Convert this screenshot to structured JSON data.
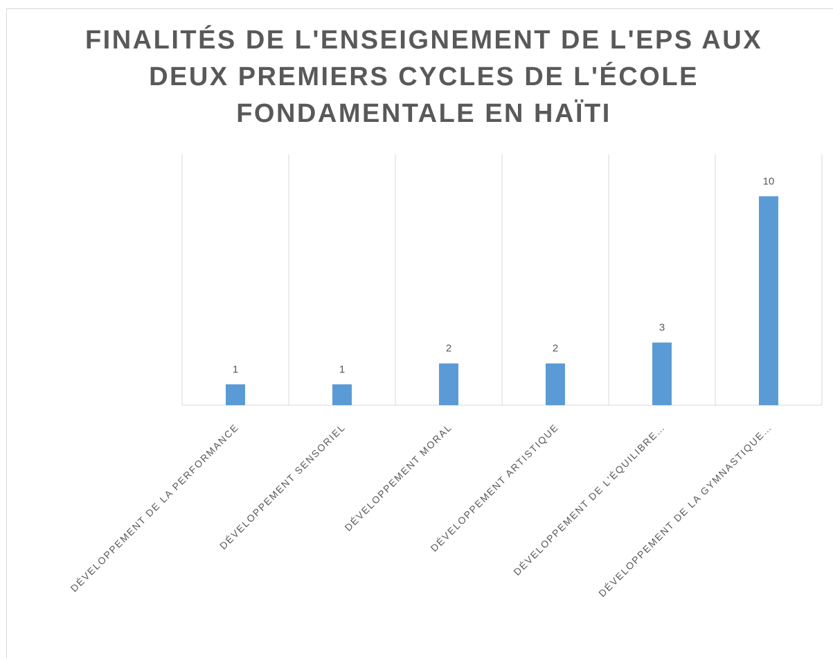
{
  "chart_data": {
    "type": "bar",
    "title": [
      "FINALITÉS DE L'ENSEIGNEMENT DE L'EPS AUX",
      "DEUX PREMIERS CYCLES DE L'ÉCOLE",
      "FONDAMENTALE EN HAÏTI"
    ],
    "categories": [
      "DÉVELOPPEMENT DE LA PERFORMANCE",
      "DÉVELOPPEMENT SENSORIEL",
      "DÉVELOPPEMENT MORAL",
      "DÉVELOPPEMENT ARTISTIQUE",
      "DÉVELOPPEMENT DE L'ÉQUILIBRE…",
      "DÉVELOPPEMENT DE LA GYMNASTIQUE…"
    ],
    "values": [
      1,
      1,
      2,
      2,
      3,
      10
    ],
    "color": "#5b9bd5",
    "ylim": [
      0,
      12
    ]
  }
}
